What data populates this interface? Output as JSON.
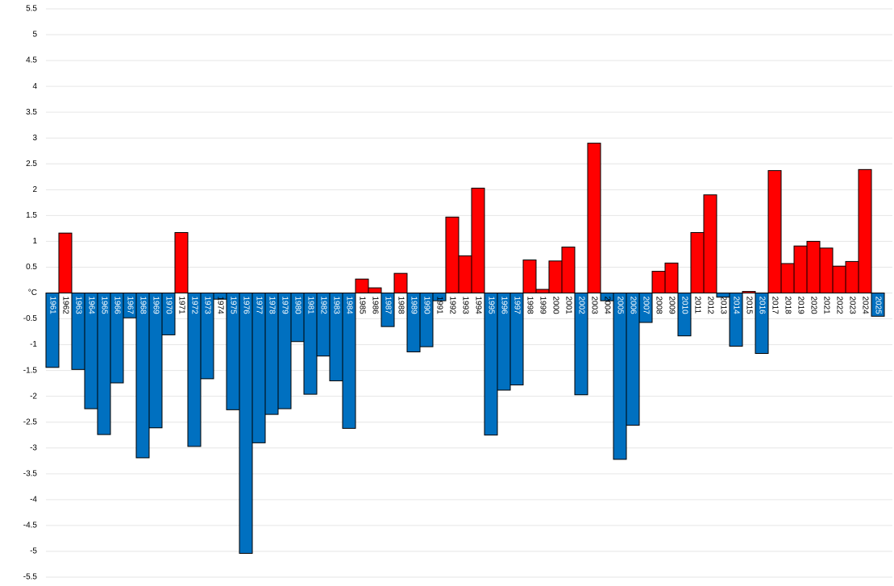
{
  "chart_data": {
    "type": "bar",
    "categories": [
      "1961",
      "1962",
      "1963",
      "1964",
      "1965",
      "1966",
      "1967",
      "1968",
      "1969",
      "1970",
      "1971",
      "1972",
      "1973",
      "1974",
      "1975",
      "1976",
      "1977",
      "1978",
      "1979",
      "1980",
      "1981",
      "1982",
      "1983",
      "1984",
      "1985",
      "1986",
      "1987",
      "1988",
      "1989",
      "1990",
      "1991",
      "1992",
      "1993",
      "1994",
      "1995",
      "1996",
      "1997",
      "1998",
      "1999",
      "2000",
      "2001",
      "2002",
      "2003",
      "2004",
      "2005",
      "2006",
      "2007",
      "2008",
      "2009",
      "2010",
      "2011",
      "2012",
      "2013",
      "2014",
      "2015",
      "2016",
      "2017",
      "2018",
      "2019",
      "2020",
      "2021",
      "2022",
      "2023",
      "2024",
      "2025"
    ],
    "values": [
      -1.44,
      1.16,
      -1.48,
      -2.24,
      -2.74,
      -1.74,
      -0.48,
      -3.19,
      -2.61,
      -0.81,
      1.17,
      -2.97,
      -1.66,
      -0.12,
      -2.26,
      -5.04,
      -2.9,
      -2.35,
      -2.24,
      -0.94,
      -1.96,
      -1.22,
      -1.7,
      -2.62,
      0.27,
      0.1,
      -0.65,
      0.38,
      -1.14,
      -1.04,
      -0.15,
      1.47,
      0.72,
      2.03,
      -2.75,
      -1.88,
      -1.78,
      0.64,
      0.07,
      0.62,
      0.89,
      -1.97,
      2.9,
      -0.15,
      -3.22,
      -2.56,
      -0.57,
      0.42,
      0.58,
      -0.83,
      1.17,
      1.9,
      -0.08,
      -1.03,
      0.03,
      -1.17,
      2.37,
      0.57,
      0.91,
      1.0,
      0.87,
      0.52,
      0.61,
      2.39,
      -0.45
    ],
    "positive_color": "#ff0000",
    "negative_color": "#0070c0",
    "ylim": [
      -5.5,
      5.5
    ],
    "yticks": [
      -5.5,
      -5,
      -4.5,
      -4,
      -3.5,
      -3,
      -2.5,
      -2,
      -1.5,
      -1,
      -0.5,
      {
        "value": 0,
        "label": "°C"
      },
      0.5,
      1,
      1.5,
      2,
      2.5,
      3,
      3.5,
      4,
      4.5,
      5,
      5.5
    ],
    "grid": true
  }
}
